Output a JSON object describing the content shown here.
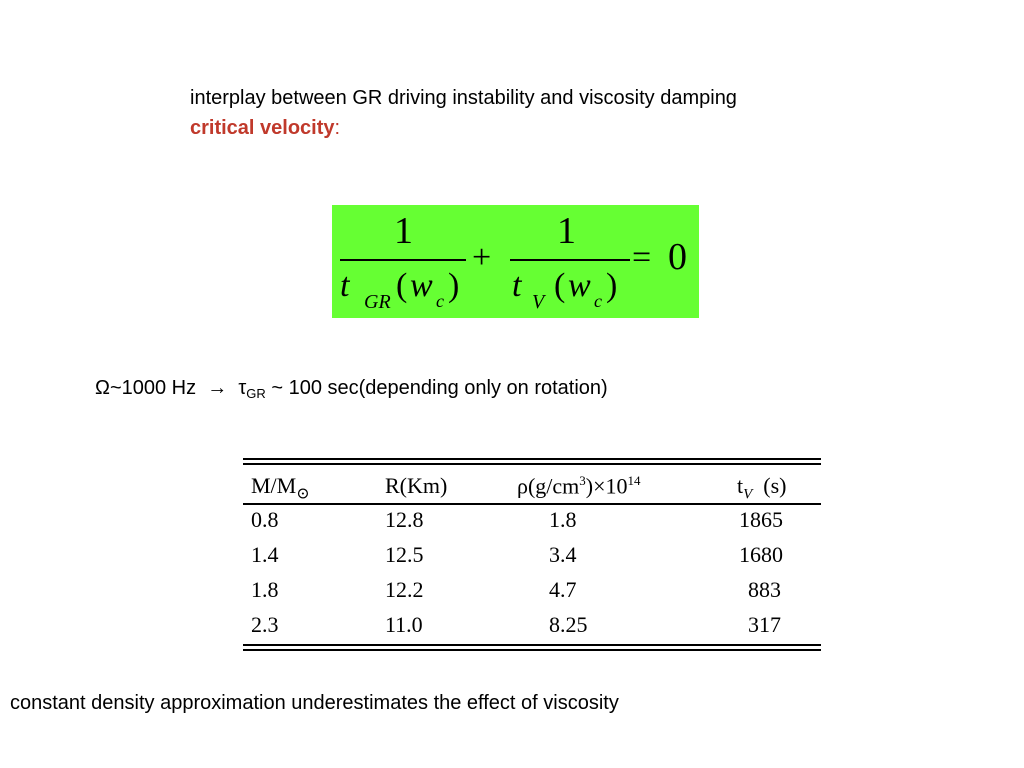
{
  "intro": {
    "line1": "interplay between GR driving instability and viscosity damping",
    "critical_label": "critical velocity",
    "critical_colon": ":"
  },
  "equation": {
    "numerator_left": "1",
    "numerator_right": "1",
    "t": "t",
    "sub_gr": "GR",
    "sub_v": "V",
    "open_paren": "(",
    "close_paren": ")",
    "w": "w",
    "sub_c": "c",
    "plus": "+",
    "equals": "=",
    "zero": "0",
    "box_color": "#66ff33"
  },
  "rotation_line": {
    "omega_part": "Ω~1000 Hz",
    "arrow": "→",
    "tau": "τ",
    "tau_sub": "GR",
    "rest": "~ 100 sec(depending only on rotation)"
  },
  "table": {
    "headers": {
      "mass": "M/M",
      "mass_sun": "⊙",
      "radius": "R(Km)",
      "density": "ρ(g/cm",
      "density_exp": "3",
      "density_tail": ")×10",
      "density_pow": "14",
      "tv": "t",
      "tv_sub": "V",
      "tv_unit": "(s)"
    },
    "rows": [
      [
        "0.8",
        "12.8",
        "1.8",
        "1865"
      ],
      [
        "1.4",
        "12.5",
        "3.4",
        "1680"
      ],
      [
        "1.8",
        "12.2",
        "4.7",
        "883"
      ],
      [
        "2.3",
        "11.0",
        "8.25",
        "317"
      ]
    ]
  },
  "conclusion": "constant density approximation underestimates the effect of viscosity"
}
